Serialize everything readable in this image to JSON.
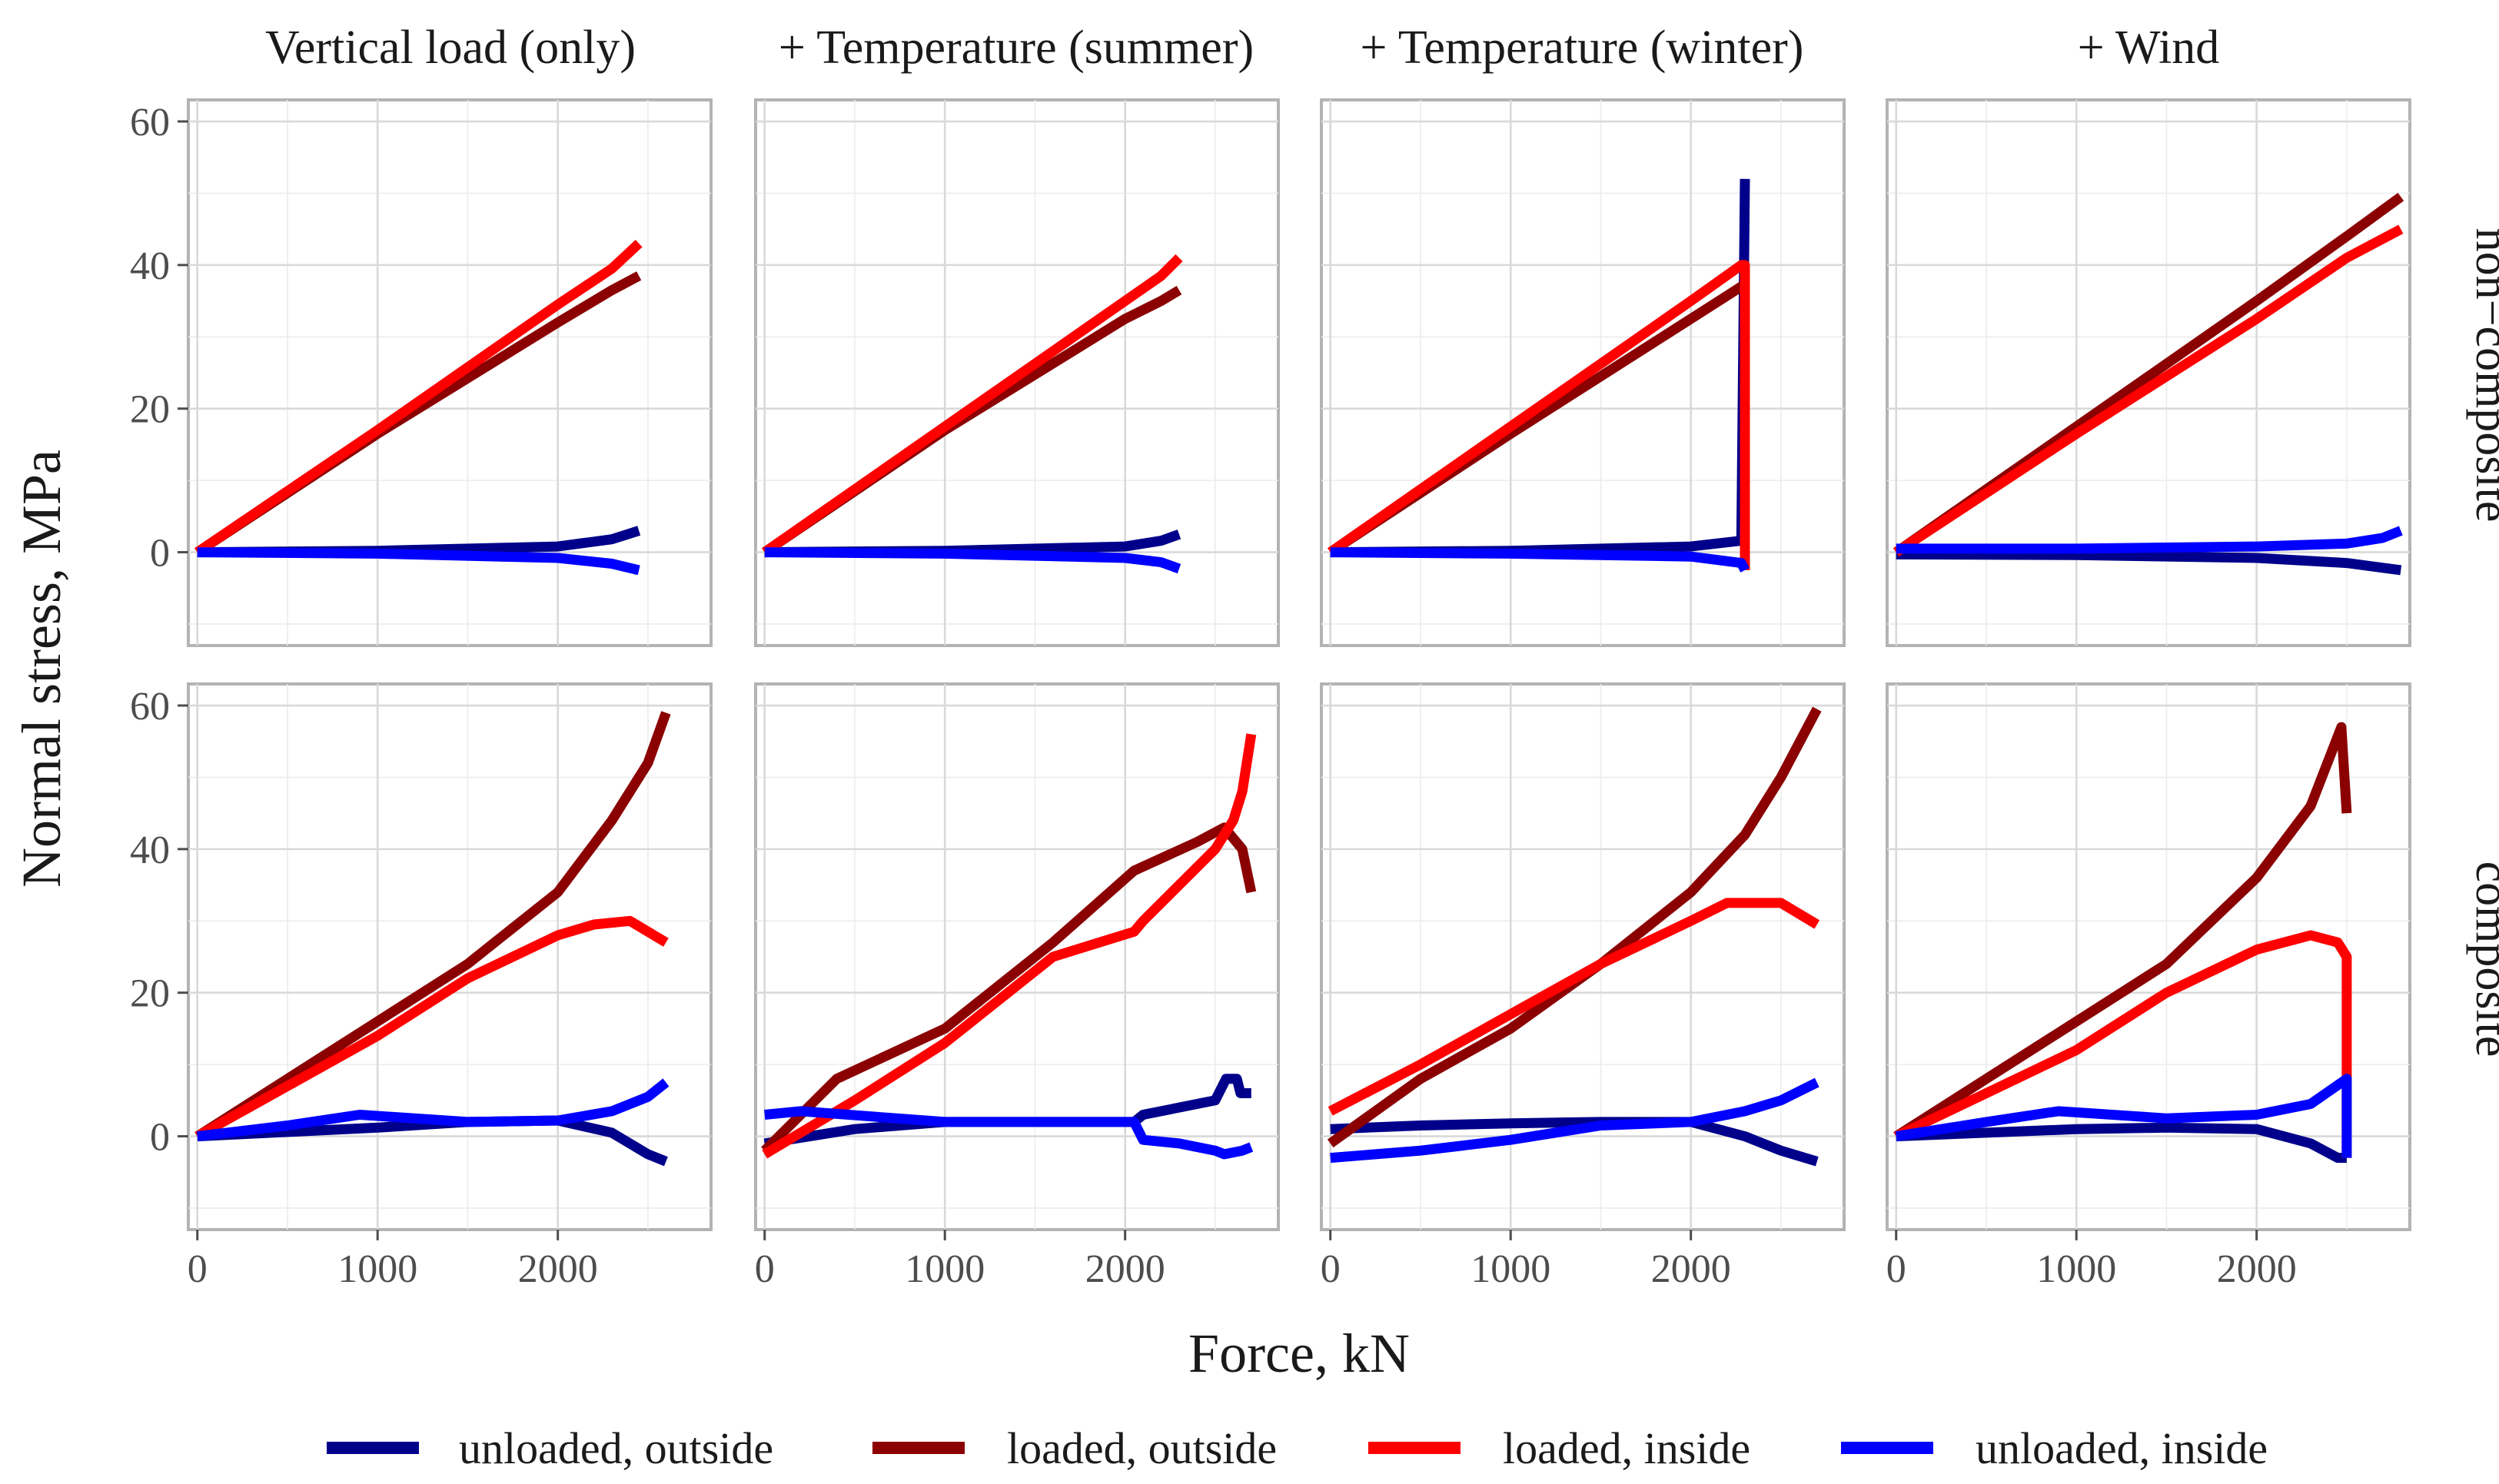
{
  "chart_data": {
    "type": "line",
    "layout": "facet grid: 2 rows x 4 columns",
    "xlabel": "Force, kN",
    "ylabel": "Normal stress, MPa",
    "xlim": [
      -50,
      2850
    ],
    "ylim": [
      -13,
      63
    ],
    "x_ticks": [
      0,
      1000,
      2000
    ],
    "y_ticks": [
      0,
      20,
      40,
      60
    ],
    "column_titles": [
      "Vertical load (only)",
      "+ Temperature (summer)",
      "+ Temperature (winter)",
      "+ Wind"
    ],
    "row_labels": [
      "non−composite",
      "composite"
    ],
    "legend": [
      {
        "key": "uo",
        "label": "unloaded, outside",
        "color": "#00008B"
      },
      {
        "key": "lo",
        "label": "loaded, outside",
        "color": "#8B0000"
      },
      {
        "key": "li",
        "label": "loaded, inside",
        "color": "#FF0000"
      },
      {
        "key": "ui",
        "label": "unloaded, inside",
        "color": "#0000FF"
      }
    ],
    "panels": [
      {
        "row": 0,
        "col": 0,
        "series": {
          "uo": [
            [
              0,
              0
            ],
            [
              1000,
              0.2
            ],
            [
              2000,
              0.8
            ],
            [
              2300,
              1.8
            ],
            [
              2450,
              3
            ]
          ],
          "lo": [
            [
              0,
              0
            ],
            [
              1000,
              16.5
            ],
            [
              2000,
              32
            ],
            [
              2300,
              36.5
            ],
            [
              2450,
              38.5
            ]
          ],
          "li": [
            [
              0,
              0
            ],
            [
              1000,
              17
            ],
            [
              2000,
              34.5
            ],
            [
              2300,
              39.5
            ],
            [
              2450,
              43
            ]
          ],
          "ui": [
            [
              0,
              0
            ],
            [
              1000,
              -0.2
            ],
            [
              2000,
              -0.8
            ],
            [
              2300,
              -1.6
            ],
            [
              2450,
              -2.5
            ]
          ]
        }
      },
      {
        "row": 0,
        "col": 1,
        "series": {
          "uo": [
            [
              0,
              0
            ],
            [
              1000,
              0.2
            ],
            [
              2000,
              0.8
            ],
            [
              2200,
              1.6
            ],
            [
              2300,
              2.5
            ]
          ],
          "lo": [
            [
              0,
              0
            ],
            [
              1000,
              17
            ],
            [
              2000,
              32.5
            ],
            [
              2200,
              35
            ],
            [
              2300,
              36.5
            ]
          ],
          "li": [
            [
              0,
              0
            ],
            [
              1000,
              17.5
            ],
            [
              2000,
              35
            ],
            [
              2200,
              38.5
            ],
            [
              2300,
              41
            ]
          ],
          "ui": [
            [
              0,
              0
            ],
            [
              1000,
              -0.2
            ],
            [
              2000,
              -0.8
            ],
            [
              2200,
              -1.4
            ],
            [
              2300,
              -2.3
            ]
          ]
        }
      },
      {
        "row": 0,
        "col": 2,
        "series": {
          "uo": [
            [
              0,
              0
            ],
            [
              1000,
              0.2
            ],
            [
              2000,
              0.8
            ],
            [
              2280,
              1.6
            ],
            [
              2300,
              52
            ]
          ],
          "lo": [
            [
              0,
              0
            ],
            [
              1000,
              16.5
            ],
            [
              2000,
              32.5
            ],
            [
              2280,
              37
            ],
            [
              2300,
              37
            ]
          ],
          "li": [
            [
              0,
              0
            ],
            [
              1000,
              17.5
            ],
            [
              2000,
              35
            ],
            [
              2280,
              40
            ],
            [
              2300,
              40
            ],
            [
              2300,
              -2.5
            ]
          ],
          "ui": [
            [
              0,
              0
            ],
            [
              1000,
              -0.2
            ],
            [
              2000,
              -0.6
            ],
            [
              2280,
              -1.5
            ],
            [
              2300,
              -2.5
            ]
          ]
        }
      },
      {
        "row": 0,
        "col": 3,
        "series": {
          "uo": [
            [
              0,
              -0.3
            ],
            [
              1000,
              -0.4
            ],
            [
              2000,
              -0.8
            ],
            [
              2500,
              -1.5
            ],
            [
              2800,
              -2.5
            ]
          ],
          "lo": [
            [
              0,
              0
            ],
            [
              1000,
              17.5
            ],
            [
              2000,
              35
            ],
            [
              2500,
              44
            ],
            [
              2800,
              49.5
            ]
          ],
          "li": [
            [
              0,
              0
            ],
            [
              1000,
              16.5
            ],
            [
              2000,
              32.5
            ],
            [
              2500,
              41
            ],
            [
              2800,
              45
            ]
          ],
          "ui": [
            [
              0,
              0.5
            ],
            [
              1000,
              0.5
            ],
            [
              2000,
              0.8
            ],
            [
              2500,
              1.2
            ],
            [
              2700,
              2
            ],
            [
              2800,
              3
            ]
          ]
        }
      },
      {
        "row": 1,
        "col": 0,
        "series": {
          "uo": [
            [
              0,
              0
            ],
            [
              500,
              0.6
            ],
            [
              1000,
              1.2
            ],
            [
              1500,
              2
            ],
            [
              2000,
              2.2
            ],
            [
              2300,
              0.5
            ],
            [
              2500,
              -2.5
            ],
            [
              2600,
              -3.5
            ]
          ],
          "lo": [
            [
              0,
              0
            ],
            [
              500,
              8
            ],
            [
              1000,
              16
            ],
            [
              1500,
              24
            ],
            [
              2000,
              34
            ],
            [
              2300,
              44
            ],
            [
              2500,
              52
            ],
            [
              2600,
              59
            ]
          ],
          "li": [
            [
              0,
              0
            ],
            [
              500,
              7
            ],
            [
              1000,
              14
            ],
            [
              1500,
              22
            ],
            [
              2000,
              28
            ],
            [
              2200,
              29.5
            ],
            [
              2400,
              30
            ],
            [
              2600,
              27
            ]
          ],
          "ui": [
            [
              0,
              0
            ],
            [
              500,
              1.5
            ],
            [
              900,
              3
            ],
            [
              1500,
              2
            ],
            [
              2000,
              2.2
            ],
            [
              2300,
              3.5
            ],
            [
              2500,
              5.5
            ],
            [
              2600,
              7.5
            ]
          ]
        }
      },
      {
        "row": 1,
        "col": 1,
        "series": {
          "uo": [
            [
              0,
              -1
            ],
            [
              500,
              1
            ],
            [
              1000,
              2
            ],
            [
              1500,
              2
            ],
            [
              2050,
              2
            ],
            [
              2100,
              3
            ],
            [
              2500,
              5
            ],
            [
              2560,
              8
            ],
            [
              2620,
              8
            ],
            [
              2640,
              6
            ],
            [
              2700,
              6
            ]
          ],
          "lo": [
            [
              0,
              -2
            ],
            [
              400,
              8
            ],
            [
              1000,
              15
            ],
            [
              1600,
              27
            ],
            [
              2050,
              37
            ],
            [
              2400,
              41
            ],
            [
              2550,
              43
            ],
            [
              2650,
              40
            ],
            [
              2700,
              34
            ]
          ],
          "li": [
            [
              0,
              -2.5
            ],
            [
              500,
              5
            ],
            [
              1000,
              13
            ],
            [
              1600,
              25
            ],
            [
              2050,
              28.5
            ],
            [
              2100,
              30
            ],
            [
              2500,
              40
            ],
            [
              2600,
              44
            ],
            [
              2650,
              48
            ],
            [
              2700,
              56
            ]
          ],
          "ui": [
            [
              0,
              3
            ],
            [
              200,
              3.5
            ],
            [
              1000,
              2
            ],
            [
              2050,
              2
            ],
            [
              2100,
              -0.5
            ],
            [
              2300,
              -1
            ],
            [
              2500,
              -2
            ],
            [
              2550,
              -2.5
            ],
            [
              2650,
              -2
            ],
            [
              2700,
              -1.5
            ]
          ]
        }
      },
      {
        "row": 1,
        "col": 2,
        "series": {
          "uo": [
            [
              0,
              1
            ],
            [
              500,
              1.5
            ],
            [
              1000,
              1.8
            ],
            [
              1500,
              2
            ],
            [
              2000,
              2
            ],
            [
              2300,
              0
            ],
            [
              2500,
              -2
            ],
            [
              2700,
              -3.5
            ]
          ],
          "lo": [
            [
              0,
              -1
            ],
            [
              500,
              8
            ],
            [
              1000,
              15
            ],
            [
              1500,
              24
            ],
            [
              2000,
              34
            ],
            [
              2300,
              42
            ],
            [
              2500,
              50
            ],
            [
              2700,
              59.5
            ]
          ],
          "li": [
            [
              0,
              3.5
            ],
            [
              500,
              10
            ],
            [
              1000,
              17
            ],
            [
              1500,
              24
            ],
            [
              2000,
              30
            ],
            [
              2200,
              32.5
            ],
            [
              2500,
              32.5
            ],
            [
              2700,
              29.5
            ]
          ],
          "ui": [
            [
              0,
              -3
            ],
            [
              500,
              -2
            ],
            [
              1000,
              -0.5
            ],
            [
              1500,
              1.5
            ],
            [
              2000,
              2
            ],
            [
              2300,
              3.5
            ],
            [
              2500,
              5
            ],
            [
              2700,
              7.5
            ]
          ]
        }
      },
      {
        "row": 1,
        "col": 3,
        "series": {
          "uo": [
            [
              0,
              0
            ],
            [
              500,
              0.5
            ],
            [
              1000,
              1
            ],
            [
              1500,
              1.2
            ],
            [
              2000,
              1
            ],
            [
              2300,
              -1
            ],
            [
              2450,
              -3
            ],
            [
              2500,
              -3
            ]
          ],
          "lo": [
            [
              0,
              0
            ],
            [
              500,
              8
            ],
            [
              1000,
              16
            ],
            [
              1500,
              24
            ],
            [
              2000,
              36
            ],
            [
              2300,
              46
            ],
            [
              2470,
              57
            ],
            [
              2500,
              45
            ]
          ],
          "li": [
            [
              0,
              0
            ],
            [
              500,
              6
            ],
            [
              1000,
              12
            ],
            [
              1500,
              20
            ],
            [
              2000,
              26
            ],
            [
              2300,
              28
            ],
            [
              2450,
              27
            ],
            [
              2500,
              25
            ],
            [
              2500,
              -3
            ]
          ],
          "ui": [
            [
              0,
              0
            ],
            [
              500,
              2
            ],
            [
              900,
              3.5
            ],
            [
              1500,
              2.5
            ],
            [
              2000,
              3
            ],
            [
              2300,
              4.5
            ],
            [
              2500,
              8
            ],
            [
              2500,
              -3
            ]
          ]
        }
      }
    ]
  }
}
